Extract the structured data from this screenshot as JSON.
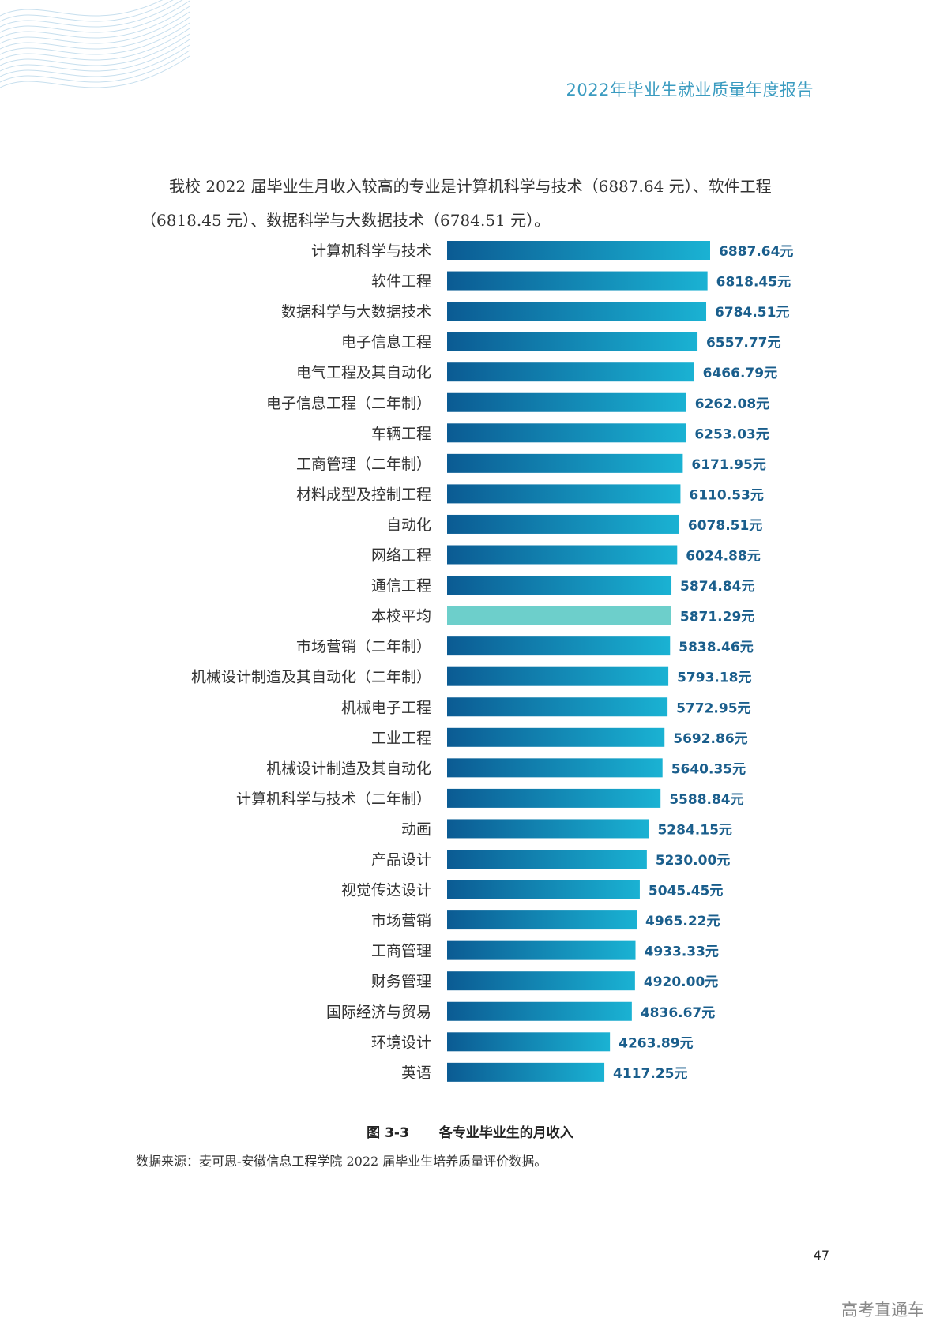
{
  "header": {
    "title": "2022年毕业生就业质量年度报告"
  },
  "intro": {
    "text": "我校 2022 届毕业生月收入较高的专业是计算机科学与技术（6887.64 元）、软件工程（6818.45 元）、数据科学与大数据技术（6784.51 元）。"
  },
  "chart_data": {
    "type": "bar",
    "orientation": "horizontal",
    "value_suffix": "元",
    "categories": [
      "计算机科学与技术",
      "软件工程",
      "数据科学与大数据技术",
      "电子信息工程",
      "电气工程及其自动化",
      "电子信息工程（二年制）",
      "车辆工程",
      "工商管理（二年制）",
      "材料成型及控制工程",
      "自动化",
      "网络工程",
      "通信工程",
      "本校平均",
      "市场营销（二年制）",
      "机械设计制造及其自动化（二年制）",
      "机械电子工程",
      "工业工程",
      "机械设计制造及其自动化",
      "计算机科学与技术（二年制）",
      "动画",
      "产品设计",
      "视觉传达设计",
      "市场营销",
      "工商管理",
      "财务管理",
      "国际经济与贸易",
      "环境设计",
      "英语"
    ],
    "values": [
      6887.64,
      6818.45,
      6784.51,
      6557.77,
      6466.79,
      6262.08,
      6253.03,
      6171.95,
      6110.53,
      6078.51,
      6024.88,
      5874.84,
      5871.29,
      5838.46,
      5793.18,
      5772.95,
      5692.86,
      5640.35,
      5588.84,
      5284.15,
      5230.0,
      5045.45,
      4965.22,
      4933.33,
      4920.0,
      4836.67,
      4263.89,
      4117.25
    ],
    "value_labels": [
      "6887.64元",
      "6818.45元",
      "6784.51元",
      "6557.77元",
      "6466.79元",
      "6262.08元",
      "6253.03元",
      "6171.95元",
      "6110.53元",
      "6078.51元",
      "6024.88元",
      "5874.84元",
      "5871.29元",
      "5838.46元",
      "5793.18元",
      "5772.95元",
      "5692.86元",
      "5640.35元",
      "5588.84元",
      "5284.15元",
      "5230.00元",
      "5045.45元",
      "4965.22元",
      "4933.33元",
      "4920.00元",
      "4836.67元",
      "4263.89元",
      "4117.25元"
    ],
    "highlight_category": "本校平均",
    "colors": {
      "bar_start": "#0b5b93",
      "bar_end": "#1ab2d3",
      "highlight": "#6dcfcb",
      "value_label": "#1a5e8c"
    },
    "grid": false,
    "legend": "none"
  },
  "caption": {
    "number": "图 3-3",
    "title": "各专业毕业生的月收入"
  },
  "source": {
    "text": "数据来源：麦可思-安徽信息工程学院 2022 届毕业生培养质量评价数据。"
  },
  "page_number": "47",
  "watermark": "高考直通车"
}
